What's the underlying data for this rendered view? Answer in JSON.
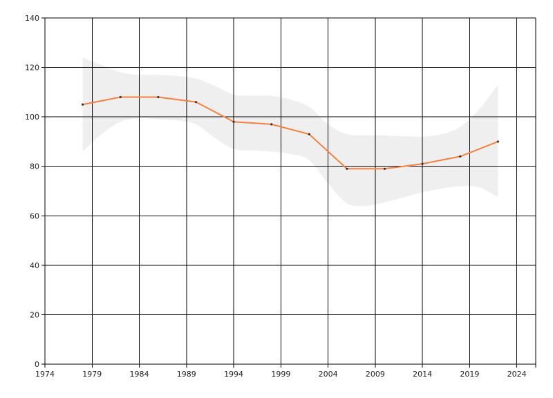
{
  "chart_data": {
    "type": "line",
    "title": "",
    "xlabel": "",
    "ylabel": "",
    "xlim": [
      1974,
      2026
    ],
    "ylim": [
      0,
      140
    ],
    "x_ticks": [
      1974,
      1979,
      1984,
      1989,
      1994,
      1999,
      2004,
      2009,
      2014,
      2019,
      2024
    ],
    "y_ticks": [
      0,
      20,
      40,
      60,
      80,
      100,
      120,
      140
    ],
    "grid": true,
    "legend": "none",
    "series": [
      {
        "x": [
          1978,
          1982,
          1986,
          1990,
          1994,
          1998,
          2002,
          2006,
          2010,
          2014,
          2018,
          2022
        ],
        "values": [
          105,
          108,
          108,
          106,
          98,
          97,
          93,
          79,
          79,
          81,
          84,
          90
        ],
        "color": "#f4813f"
      }
    ],
    "band": {
      "x": [
        1978,
        1980,
        1982,
        1984,
        1986,
        1988,
        1990,
        1992,
        1994,
        1996,
        1998,
        2000,
        2002,
        2004,
        2006,
        2008,
        2010,
        2012,
        2014,
        2016,
        2018,
        2020,
        2022
      ],
      "upper": [
        124,
        121,
        118,
        117,
        117,
        116.5,
        115.5,
        112.5,
        109,
        108.5,
        108.5,
        107,
        104,
        97,
        93,
        92.5,
        92.5,
        92.2,
        92,
        93,
        96,
        103,
        113
      ],
      "lower": [
        86,
        93,
        98,
        99.5,
        99,
        98.5,
        97,
        91.5,
        87,
        86.5,
        86,
        85,
        82.5,
        73,
        65,
        64,
        65.5,
        67.5,
        69.5,
        71,
        72,
        71.5,
        67.5
      ],
      "color": "#efefef"
    }
  }
}
